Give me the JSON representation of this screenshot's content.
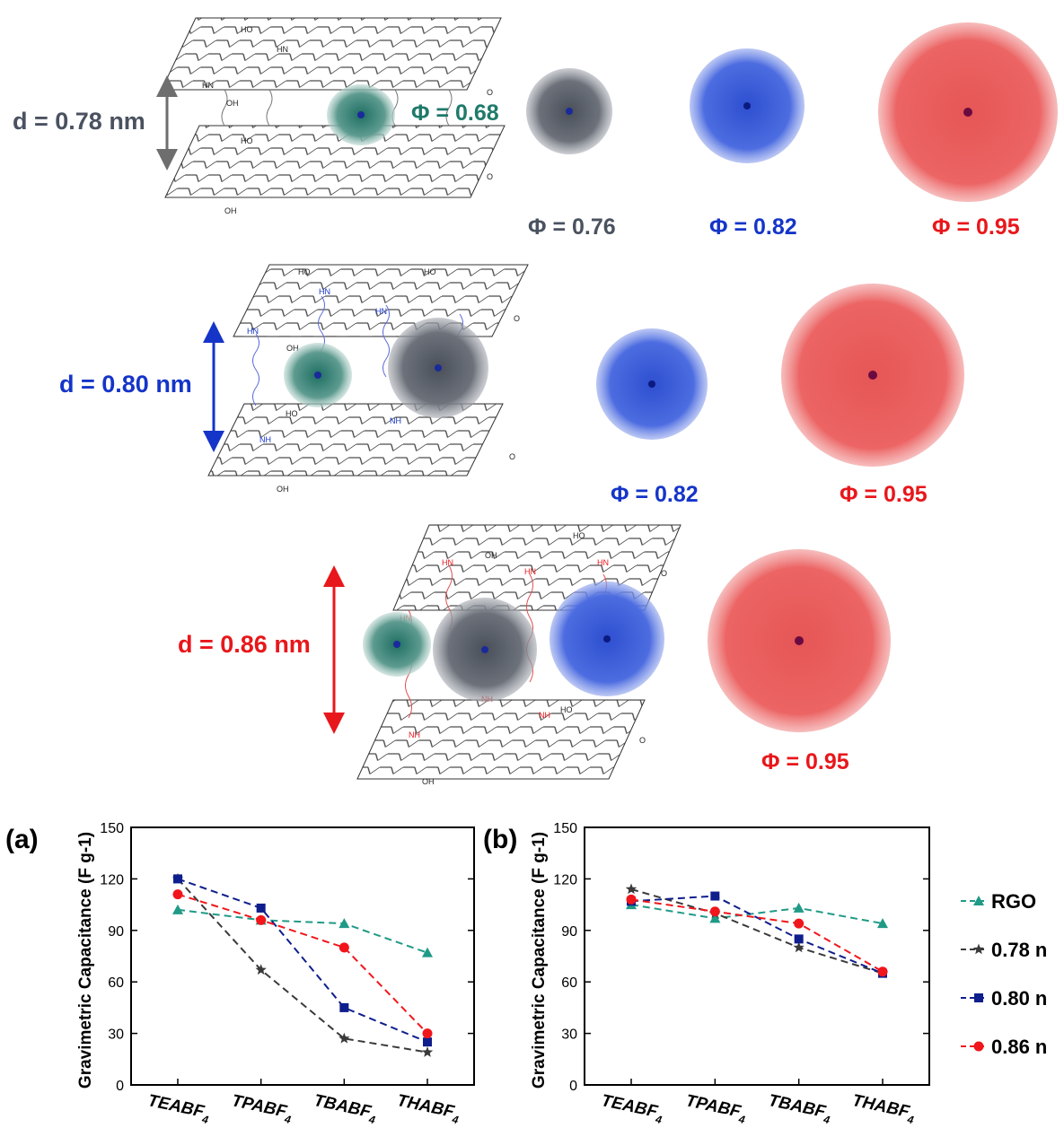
{
  "schematic": {
    "row1": {
      "spacing": "d = 0.78 nm",
      "phis": [
        "Φ = 0.68",
        "Φ = 0.76",
        "Φ = 0.82",
        "Φ = 0.95"
      ]
    },
    "row2": {
      "spacing": "d = 0.80 nm",
      "phis": [
        "Φ = 0.82",
        "Φ = 0.95"
      ]
    },
    "row3": {
      "spacing": "d = 0.86 nm",
      "phis": [
        "Φ = 0.95"
      ]
    },
    "atom_labels": [
      "HO",
      "HN",
      "OH",
      "NH",
      "O"
    ]
  },
  "colors": {
    "teal": "#1f7a6a",
    "gray": "#4a5260",
    "blue": "#1535c8",
    "red": "#e8171b",
    "ion_gray": "#5f6672",
    "ion_blue": "#3c5ed8",
    "ion_red": "#ec5858"
  },
  "chart_data": [
    {
      "panel": "(a)",
      "type": "line",
      "ylabel": "Gravimetric Capacitance (F g-1)",
      "ylim": [
        0,
        150
      ],
      "yticks": [
        "0",
        "30",
        "60",
        "90",
        "120",
        "150"
      ],
      "categories": [
        "TEABF4",
        "TPABF4",
        "TBABF4",
        "THABF4"
      ],
      "series": [
        {
          "name": "RGO",
          "values": [
            102,
            96,
            94,
            77
          ]
        },
        {
          "name": "0.78 n",
          "values": [
            120,
            67,
            27,
            19
          ]
        },
        {
          "name": "0.80 n",
          "values": [
            120,
            103,
            45,
            25
          ]
        },
        {
          "name": "0.86 n",
          "values": [
            111,
            96,
            80,
            30
          ]
        }
      ]
    },
    {
      "panel": "(b)",
      "type": "line",
      "ylabel": "Gravimetric Capacitance (F g-1)",
      "ylim": [
        0,
        150
      ],
      "yticks": [
        "0",
        "30",
        "60",
        "90",
        "120",
        "150"
      ],
      "categories": [
        "TEABF4",
        "TPABF4",
        "TBABF4",
        "THABF4"
      ],
      "series": [
        {
          "name": "RGO",
          "values": [
            105,
            97,
            103,
            94
          ]
        },
        {
          "name": "0.78 n",
          "values": [
            114,
            100,
            80,
            65
          ]
        },
        {
          "name": "0.80 n",
          "values": [
            107,
            110,
            85,
            65
          ]
        },
        {
          "name": "0.86 n",
          "values": [
            108,
            101,
            94,
            66
          ]
        }
      ]
    }
  ],
  "legend": {
    "items": [
      "RGO",
      "0.78 n",
      "0.80 n",
      "0.86 n"
    ],
    "colors": [
      "#1f9a86",
      "#3a3a3a",
      "#0e1e8c",
      "#f0161b"
    ],
    "markers": [
      "triangle",
      "star",
      "square",
      "circle"
    ]
  }
}
